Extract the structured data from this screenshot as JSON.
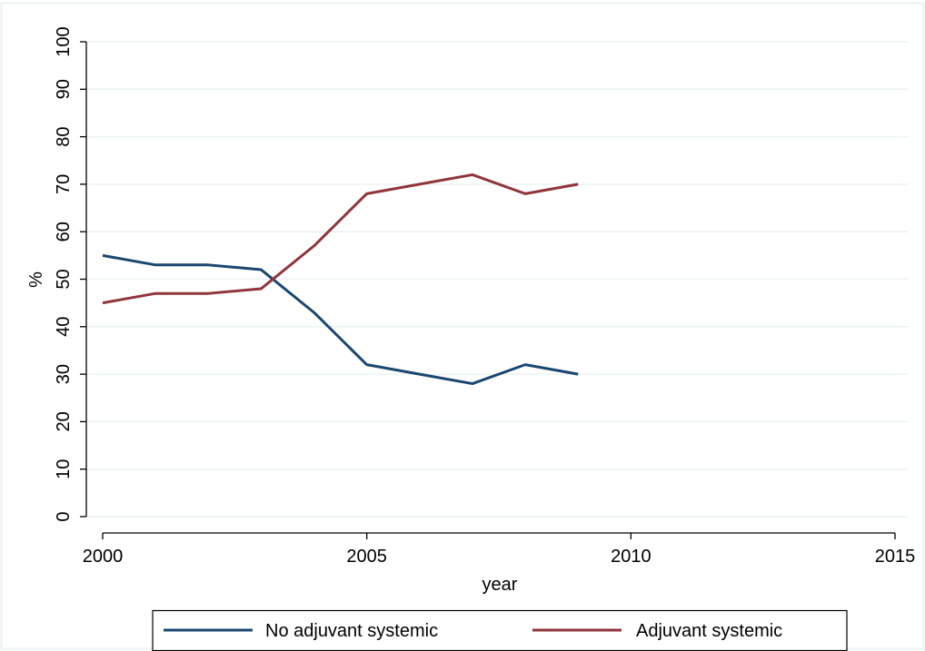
{
  "chart_data": {
    "type": "line",
    "title": "",
    "xlabel": "year",
    "ylabel": "%",
    "xlim": [
      2000,
      2015
    ],
    "ylim": [
      0,
      100
    ],
    "x_ticks": [
      2000,
      2005,
      2010,
      2015
    ],
    "y_ticks": [
      0,
      10,
      20,
      30,
      40,
      50,
      60,
      70,
      80,
      90,
      100
    ],
    "grid": true,
    "legend_position": "bottom",
    "x": [
      2000,
      2001,
      2002,
      2003,
      2004,
      2005,
      2006,
      2007,
      2008,
      2009
    ],
    "series": [
      {
        "name": "No adjuvant systemic",
        "color": "#1a476f",
        "values": [
          55,
          53,
          53,
          52,
          43,
          32,
          30,
          28,
          32,
          30
        ]
      },
      {
        "name": "Adjuvant systemic",
        "color": "#90353b",
        "values": [
          45,
          47,
          47,
          48,
          57,
          68,
          70,
          72,
          68,
          70
        ]
      }
    ],
    "colors": {
      "grid": "#eaf2f3",
      "axis": "#000000",
      "frame": "#eaf2f3"
    }
  }
}
